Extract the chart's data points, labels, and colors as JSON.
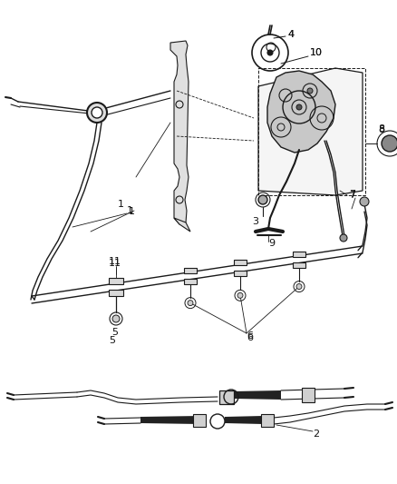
{
  "bg_color": "#ffffff",
  "line_color": "#1a1a1a",
  "label_color": "#111111",
  "fig_width": 4.38,
  "fig_height": 5.33,
  "dpi": 100
}
